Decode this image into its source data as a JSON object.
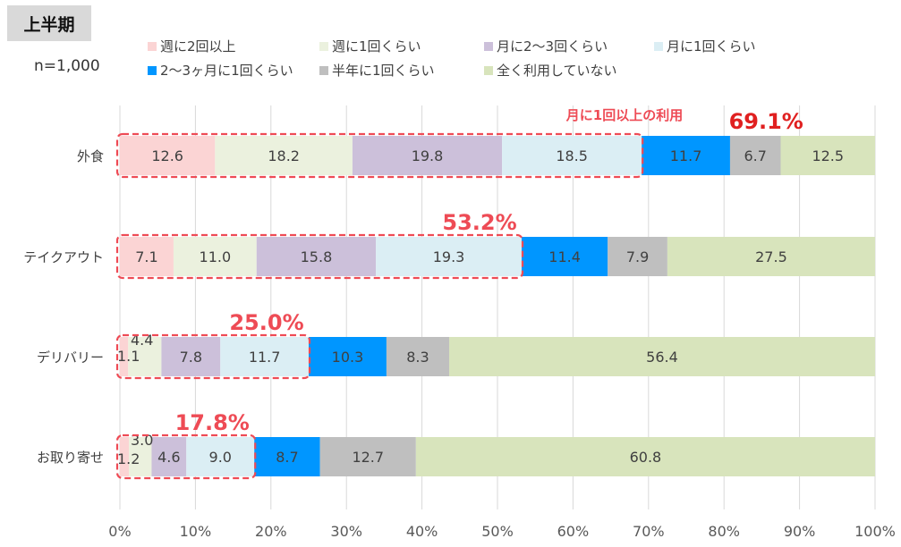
{
  "header": {
    "period_label": "上半期",
    "sample_size": "n=1,000"
  },
  "callout_label": "月に1回以上の利用",
  "colors": {
    "s0": "#fbd4d4",
    "s1": "#ebf1de",
    "s2": "#ccc0da",
    "s3": "#dbeef4",
    "s4": "#0096ff",
    "s5": "#bfbfbf",
    "s6": "#d8e4bc",
    "accent": "#ee4b55"
  },
  "chart_data": {
    "type": "bar",
    "orientation": "horizontal-stacked-100",
    "categories": [
      "外食",
      "テイクアウト",
      "デリバリー",
      "お取り寄せ"
    ],
    "series": [
      {
        "name": "週に2回以上",
        "values": [
          12.6,
          7.1,
          1.1,
          1.2
        ]
      },
      {
        "name": "週に1回くらい",
        "values": [
          18.2,
          11.0,
          4.4,
          3.0
        ]
      },
      {
        "name": "月に2〜3回くらい",
        "values": [
          19.8,
          15.8,
          7.8,
          4.6
        ]
      },
      {
        "name": "月に1回くらい",
        "values": [
          18.5,
          19.3,
          11.7,
          9.0
        ]
      },
      {
        "name": "2〜3ヶ月に1回くらい",
        "values": [
          11.7,
          11.4,
          10.3,
          8.7
        ]
      },
      {
        "name": "半年に1回くらい",
        "values": [
          6.7,
          7.9,
          8.3,
          12.7
        ]
      },
      {
        "name": "全く利用していない",
        "values": [
          12.5,
          27.5,
          56.4,
          60.8
        ]
      }
    ],
    "value_labels": [
      [
        "12.6",
        "18.2",
        "19.8",
        "18.5",
        "11.7",
        "6.7",
        "12.5"
      ],
      [
        "7.1",
        "11.0",
        "15.8",
        "19.3",
        "11.4",
        "7.9",
        "27.5"
      ],
      [
        "1.1",
        "4.4",
        "7.8",
        "11.7",
        "10.3",
        "8.3",
        "56.4"
      ],
      [
        "1.2",
        "3.0",
        "4.6",
        "9.0",
        "8.7",
        "12.7",
        "60.8"
      ]
    ],
    "monthly_or_more": [
      "69.1%",
      "53.2%",
      "25.0%",
      "17.8%"
    ],
    "x_ticks": [
      "0%",
      "10%",
      "20%",
      "30%",
      "40%",
      "50%",
      "60%",
      "70%",
      "80%",
      "90%",
      "100%"
    ],
    "xlim": [
      0,
      100
    ]
  }
}
